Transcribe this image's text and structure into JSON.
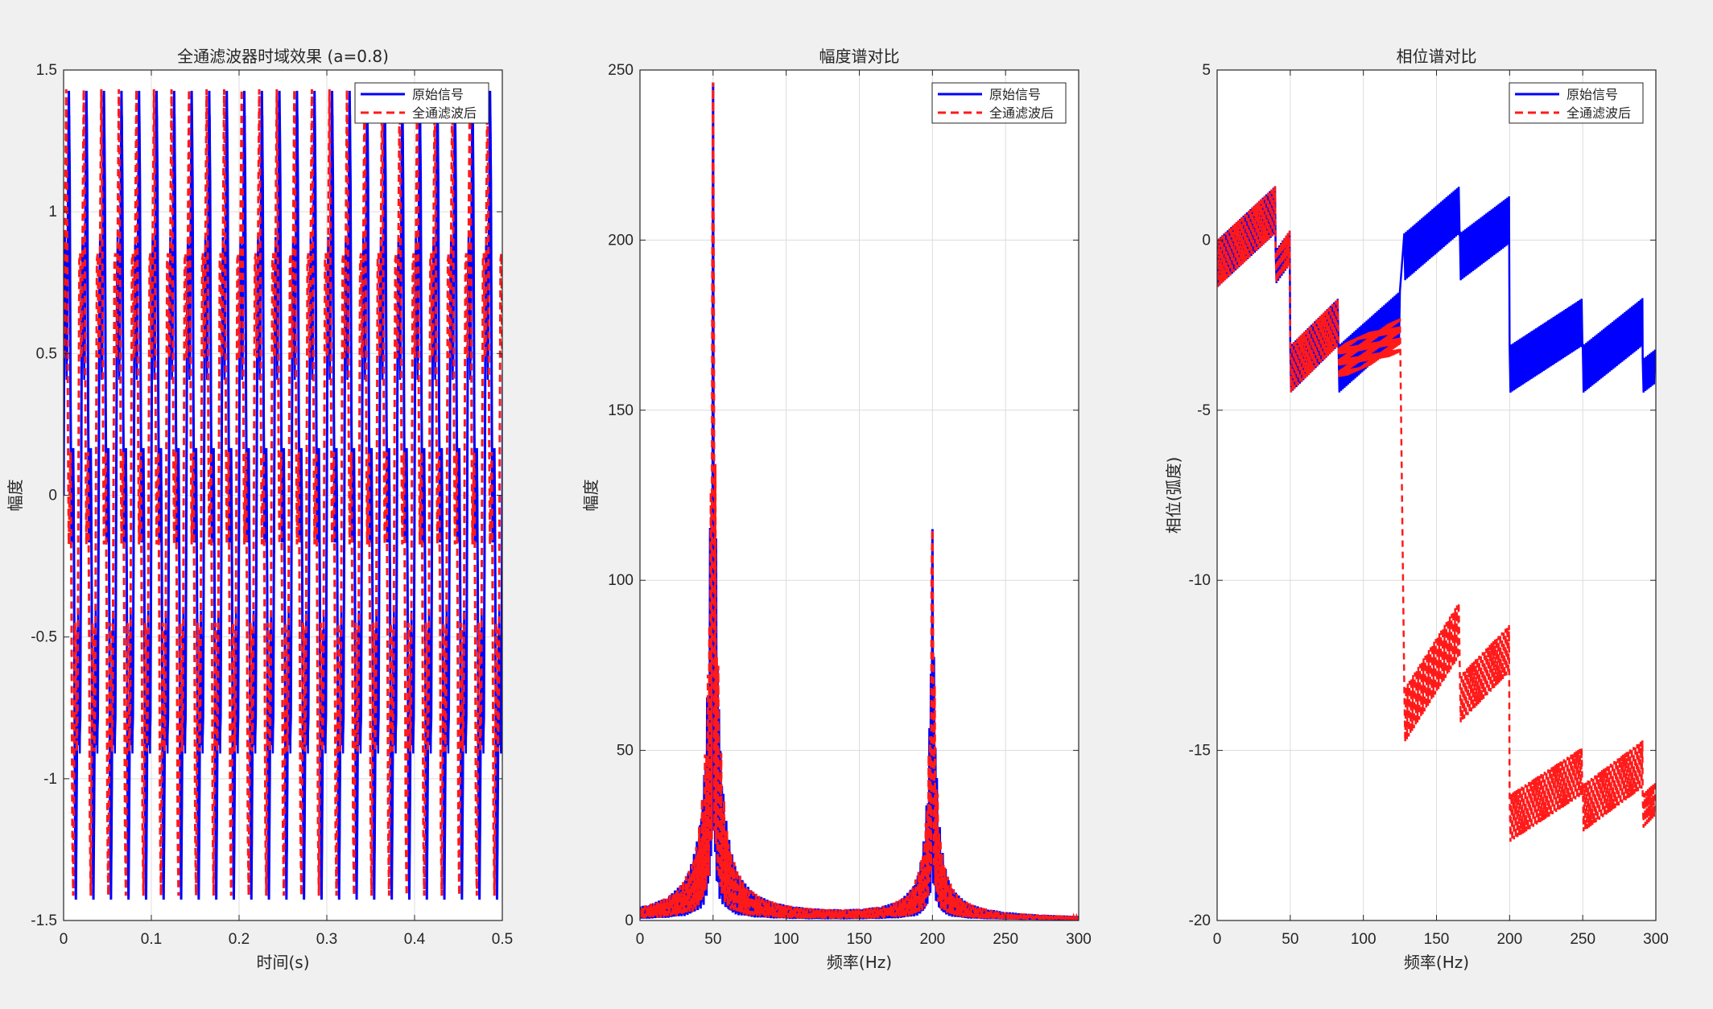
{
  "colors": {
    "original": "#0000ff",
    "filtered": "#ff1a1a",
    "grid": "#dcdcdc",
    "axis": "#262626",
    "background": "#f0f0f0"
  },
  "chart_data": [
    {
      "type": "line",
      "title": "全通滤波器时域效果 (a=0.8)",
      "xlabel": "时间(s)",
      "ylabel": "幅度",
      "xlim": [
        0,
        0.5
      ],
      "ylim": [
        -1.5,
        1.5
      ],
      "xticks": [
        "0",
        "0.1",
        "0.2",
        "0.3",
        "0.4",
        "0.5"
      ],
      "yticks": [
        "-1.5",
        "-1",
        "-0.5",
        "0",
        "0.5",
        "1",
        "1.5"
      ],
      "grid": true,
      "legend_position": "top-right",
      "signal": {
        "components_hz": [
          50,
          200
        ],
        "amplitudes": [
          1.0,
          0.5
        ],
        "period_s": 0.02,
        "peak_max": 1.43,
        "peak_min": -1.43
      },
      "series": [
        {
          "name": "原始信号",
          "style": "solid",
          "color": "#0000ff"
        },
        {
          "name": "全通滤波后",
          "style": "dashed",
          "color": "#ff1a1a"
        }
      ]
    },
    {
      "type": "line",
      "title": "幅度谱对比",
      "xlabel": "频率(Hz)",
      "ylabel": "幅度",
      "xlim": [
        0,
        300
      ],
      "ylim": [
        0,
        250
      ],
      "xticks": [
        "0",
        "50",
        "100",
        "150",
        "200",
        "250",
        "300"
      ],
      "yticks": [
        "0",
        "50",
        "100",
        "150",
        "200",
        "250"
      ],
      "grid": true,
      "legend_position": "top-right",
      "peaks": [
        {
          "x": 50,
          "y": 247
        },
        {
          "x": 200,
          "y": 123
        }
      ],
      "series": [
        {
          "name": "原始信号",
          "style": "solid",
          "color": "#0000ff"
        },
        {
          "name": "全通滤波后",
          "style": "dashed",
          "color": "#ff1a1a"
        }
      ]
    },
    {
      "type": "line",
      "title": "相位谱对比",
      "xlabel": "频率(Hz)",
      "ylabel": "相位(弧度)",
      "xlim": [
        0,
        300
      ],
      "ylim": [
        -20,
        5
      ],
      "xticks": [
        "0",
        "50",
        "100",
        "150",
        "200",
        "250",
        "300"
      ],
      "yticks": [
        "-20",
        "-15",
        "-10",
        "-5",
        "0",
        "5"
      ],
      "grid": true,
      "legend_position": "top-right",
      "series": [
        {
          "name": "原始信号",
          "style": "solid",
          "color": "#0000ff",
          "segments": [
            {
              "x0": 0,
              "x1": 40,
              "y0": -0.7,
              "y1": 0.9,
              "band": 1.4
            },
            {
              "x0": 40,
              "x1": 50,
              "y0": -0.8,
              "y1": -0.2,
              "band": 1.0
            },
            {
              "x0": 50,
              "x1": 83,
              "y0": -3.8,
              "y1": -2.4,
              "band": 1.4
            },
            {
              "x0": 83,
              "x1": 125,
              "y0": -3.8,
              "y1": -2.2,
              "band": 1.4
            },
            {
              "x0": 128,
              "x1": 166,
              "y0": -0.5,
              "y1": 0.9,
              "band": 1.4
            },
            {
              "x0": 166,
              "x1": 200,
              "y0": -0.5,
              "y1": 0.6,
              "band": 1.4
            },
            {
              "x0": 200,
              "x1": 250,
              "y0": -3.8,
              "y1": -2.4,
              "band": 1.4
            },
            {
              "x0": 250,
              "x1": 291,
              "y0": -3.8,
              "y1": -2.4,
              "band": 1.4
            },
            {
              "x0": 291,
              "x1": 300,
              "y0": -4.0,
              "y1": -3.7,
              "band": 1.0
            }
          ]
        },
        {
          "name": "全通滤波后",
          "style": "dashed",
          "color": "#ff1a1a",
          "segments": [
            {
              "x0": 0,
              "x1": 40,
              "y0": -0.7,
              "y1": 0.9,
              "band": 1.4
            },
            {
              "x0": 40,
              "x1": 50,
              "y0": -0.8,
              "y1": -0.2,
              "band": 1.0
            },
            {
              "x0": 50,
              "x1": 83,
              "y0": -3.8,
              "y1": -2.4,
              "band": 1.4
            },
            {
              "x0": 83,
              "x1": 125,
              "y0": -3.6,
              "y1": -2.8,
              "band": 1.0
            },
            {
              "x0": 128,
              "x1": 166,
              "y0": -14.0,
              "y1": -11.4,
              "band": 1.6
            },
            {
              "x0": 166,
              "x1": 200,
              "y0": -13.5,
              "y1": -12.0,
              "band": 1.4
            },
            {
              "x0": 200,
              "x1": 250,
              "y0": -17.0,
              "y1": -15.6,
              "band": 1.4
            },
            {
              "x0": 250,
              "x1": 291,
              "y0": -16.7,
              "y1": -15.4,
              "band": 1.4
            },
            {
              "x0": 291,
              "x1": 300,
              "y0": -16.8,
              "y1": -16.4,
              "band": 1.0
            }
          ]
        }
      ]
    }
  ]
}
